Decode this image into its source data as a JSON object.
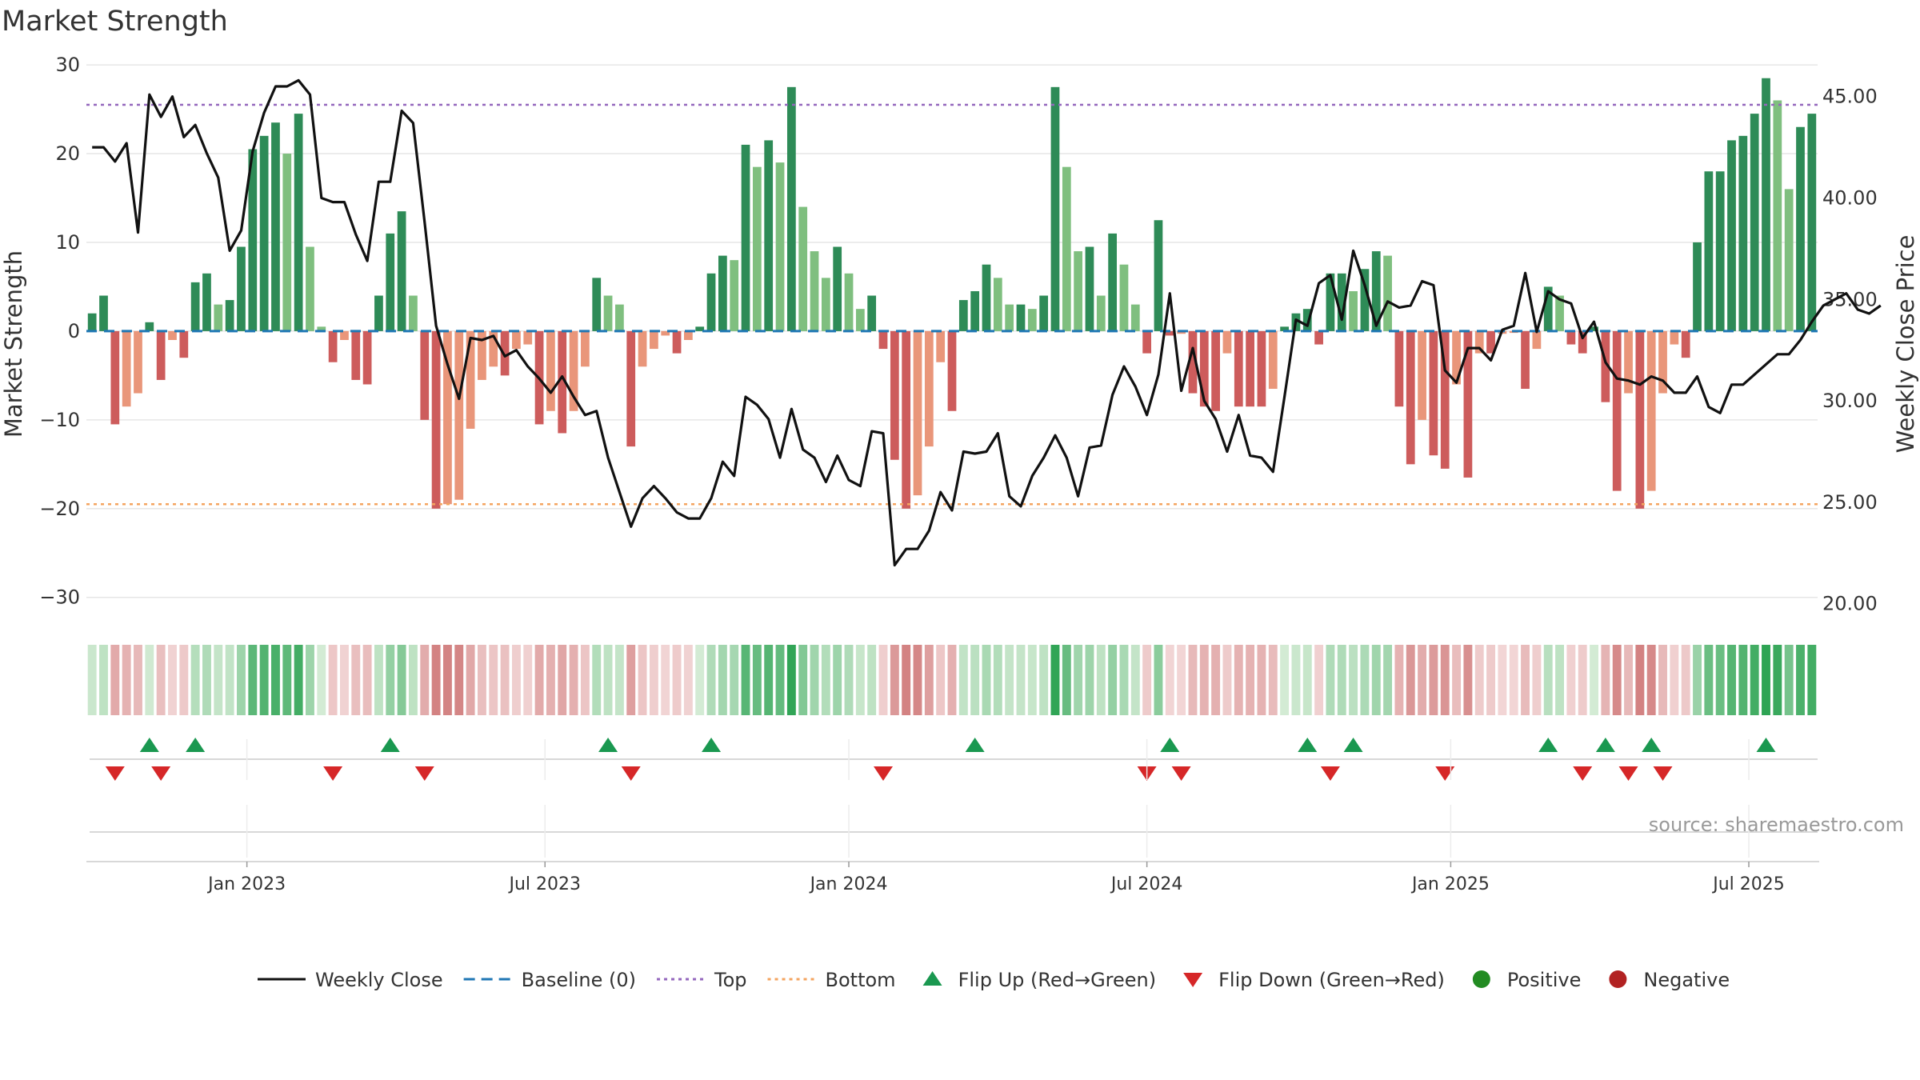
{
  "chart_data": {
    "type": "bar",
    "title": "Market Strength",
    "ylabel_left": "Market Strength",
    "ylabel_right": "Weekly Close Price",
    "ylim_left": [
      -33,
      31
    ],
    "ylim_right": [
      19.0,
      47.0
    ],
    "left_ticks": [
      {
        "value": 30,
        "label": "30"
      },
      {
        "value": 20,
        "label": "20"
      },
      {
        "value": 10,
        "label": "10"
      },
      {
        "value": 0,
        "label": "0"
      },
      {
        "value": -10,
        "label": "−10"
      },
      {
        "value": -20,
        "label": "−20"
      },
      {
        "value": -30,
        "label": "−30"
      }
    ],
    "right_ticks": [
      {
        "value": 45,
        "label": "45.00"
      },
      {
        "value": 40,
        "label": "40.00"
      },
      {
        "value": 35,
        "label": "35.00"
      },
      {
        "value": 30,
        "label": "30.00"
      },
      {
        "value": 25,
        "label": "25.00"
      },
      {
        "value": 20,
        "label": "20.00"
      }
    ],
    "x_ticks": [
      {
        "week": 14,
        "label": "Jan 2023"
      },
      {
        "week": 40,
        "label": "Jul 2023"
      },
      {
        "week": 66.5,
        "label": "Jan 2024"
      },
      {
        "week": 92.5,
        "label": "Jul 2024"
      },
      {
        "week": 119,
        "label": "Jan 2025"
      },
      {
        "week": 145,
        "label": "Jul 2025"
      }
    ],
    "top_threshold": 25.5,
    "bottom_threshold": -19.5,
    "strength": [
      2,
      4,
      -10.5,
      -8.5,
      -7,
      1,
      -5.5,
      -1,
      -3,
      5.5,
      6.5,
      3,
      3.5,
      9.5,
      20.5,
      22,
      23.5,
      20,
      24.5,
      9.5,
      0.5,
      -3.5,
      -1,
      -5.5,
      -6,
      4,
      11,
      13.5,
      4,
      -10,
      -20,
      -19.5,
      -19,
      -11,
      -5.5,
      -4,
      -5,
      -2,
      -1.5,
      -10.5,
      -9,
      -11.5,
      -9,
      -4,
      6,
      4,
      3,
      -13,
      -4,
      -2,
      -0.5,
      -2.5,
      -1,
      0.5,
      6.5,
      8.5,
      8,
      21,
      18.5,
      21.5,
      19,
      27.5,
      14,
      9,
      6,
      9.5,
      6.5,
      2.5,
      4,
      -2,
      -14.5,
      -20,
      -18.5,
      -13,
      -3.5,
      -9,
      3.5,
      4.5,
      7.5,
      6,
      3,
      3,
      2.5,
      4,
      27.5,
      18.5,
      9,
      9.5,
      4,
      11,
      7.5,
      3,
      -2.5,
      12.5,
      -0.5,
      -0.3,
      -7,
      -8.5,
      -9,
      -2.5,
      -8.5,
      -8.5,
      -8.5,
      -6.5,
      0.5,
      2,
      2.5,
      -1.5,
      6.5,
      6.5,
      4.5,
      7,
      9,
      8.5,
      -8.5,
      -15,
      -10,
      -14,
      -15.5,
      -6,
      -16.5,
      -2.5,
      -2.5,
      -0.3,
      -0.2,
      -6.5,
      -2,
      5,
      4,
      -1.5,
      -2.5,
      0.5,
      -8,
      -18,
      -7,
      -20,
      -18,
      -7,
      -1.5,
      -3,
      10,
      18,
      18,
      21.5,
      22,
      24.5,
      28.5,
      26,
      16,
      23,
      24.5
    ],
    "price": [
      42.5,
      42.5,
      41.8,
      42.7,
      38.3,
      45.1,
      44.0,
      45.0,
      43.0,
      43.6,
      42.2,
      41.0,
      37.4,
      38.4,
      42.3,
      44.2,
      45.5,
      45.5,
      45.8,
      45.1,
      40.0,
      39.8,
      39.8,
      38.2,
      36.9,
      40.8,
      40.8,
      44.3,
      43.7,
      38.8,
      33.7,
      31.8,
      30.1,
      33.1,
      33.0,
      33.2,
      32.2,
      32.5,
      31.7,
      31.1,
      30.4,
      31.2,
      30.2,
      29.3,
      29.5,
      27.2,
      25.5,
      23.8,
      25.2,
      25.8,
      25.2,
      24.5,
      24.2,
      24.2,
      25.2,
      27.0,
      26.3,
      30.2,
      29.8,
      29.1,
      27.2,
      29.6,
      27.6,
      27.2,
      26.0,
      27.3,
      26.1,
      25.8,
      28.5,
      28.4,
      21.9,
      22.7,
      22.7,
      23.6,
      25.5,
      24.6,
      27.5,
      27.4,
      27.5,
      28.4,
      25.3,
      24.8,
      26.3,
      27.2,
      28.3,
      27.2,
      25.3,
      27.7,
      27.8,
      30.3,
      31.7,
      30.7,
      29.3,
      31.3,
      35.3,
      30.5,
      32.6,
      30.0,
      29.1,
      27.5,
      29.3,
      27.3,
      27.2,
      26.5,
      30.2,
      34.0,
      33.7,
      35.8,
      36.2,
      34.0,
      37.4,
      35.7,
      33.7,
      34.9,
      34.6,
      34.7,
      35.9,
      35.7,
      31.5,
      30.9,
      32.6,
      32.6,
      32.0,
      33.5,
      33.7,
      36.3,
      33.4,
      35.4,
      35.0,
      34.8,
      33.1,
      33.9,
      31.9,
      31.1,
      31.0,
      30.8,
      31.2,
      31.0,
      30.4,
      30.4,
      31.2,
      29.7,
      29.4,
      30.8,
      30.8,
      31.3,
      31.8,
      32.3,
      32.3,
      33.0,
      33.9,
      34.7,
      35.0,
      35.3,
      34.5,
      34.3,
      34.7
    ],
    "colors": {
      "bar_positive_strong": "#2e8b57",
      "bar_positive_weak": "#7fbf7f",
      "bar_negative_strong": "#cd5c5c",
      "bar_negative_weak": "#e9967a",
      "price_line": "#111111",
      "baseline": "#1f77b4",
      "top_line": "#9467bd",
      "bottom_line": "#f4a460",
      "flip_up": "#1a9850",
      "flip_down": "#d62728",
      "positive": "#228b22",
      "negative": "#b22222",
      "grid": "#e6e6e6"
    },
    "flip_up_weeks": [
      5,
      9,
      26,
      45,
      54,
      77,
      94,
      106,
      110,
      127,
      132,
      136,
      146
    ],
    "flip_down_weeks": [
      2,
      6,
      21,
      29,
      47,
      69,
      92,
      95,
      108,
      118,
      130,
      134,
      137
    ],
    "legend": [
      {
        "key": "weekly_close",
        "label": "Weekly Close",
        "symbol": "line"
      },
      {
        "key": "baseline",
        "label": "Baseline (0)",
        "symbol": "dash"
      },
      {
        "key": "top",
        "label": "Top",
        "symbol": "dot-purple"
      },
      {
        "key": "bottom",
        "label": "Bottom",
        "symbol": "dot-orange"
      },
      {
        "key": "flip_up",
        "label": "Flip Up (Red→Green)",
        "symbol": "tri-up"
      },
      {
        "key": "flip_down",
        "label": "Flip Down (Green→Red)",
        "symbol": "tri-down"
      },
      {
        "key": "positive",
        "label": "Positive",
        "symbol": "dot-green"
      },
      {
        "key": "negative",
        "label": "Negative",
        "symbol": "dot-red"
      }
    ],
    "source": "source: sharemaestro.com"
  }
}
